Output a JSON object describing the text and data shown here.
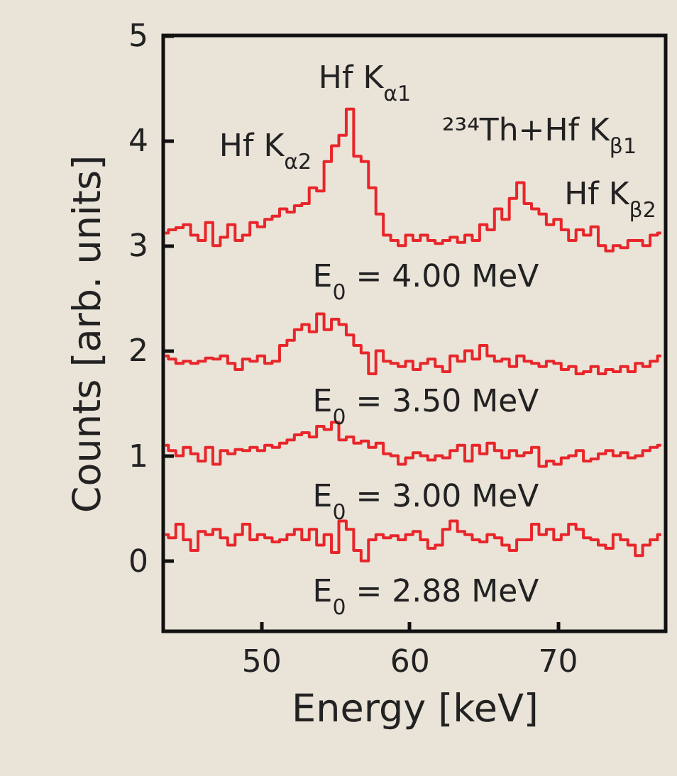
{
  "chart_data": {
    "type": "step",
    "xlabel": "Energy [keV]",
    "ylabel": "Counts [arb. units]",
    "x": [
      43.5,
      44,
      44.5,
      45,
      45.5,
      46,
      46.5,
      47,
      47.5,
      48,
      48.5,
      49,
      49.5,
      50,
      50.5,
      51,
      51.5,
      52,
      52.5,
      53,
      53.5,
      54,
      54.5,
      55,
      55.5,
      56,
      56.5,
      57,
      57.5,
      58,
      58.5,
      59,
      59.5,
      60,
      60.5,
      61,
      61.5,
      62,
      62.5,
      63,
      63.5,
      64,
      64.5,
      65,
      65.5,
      66,
      66.5,
      67,
      67.5,
      68,
      68.5,
      69,
      69.5,
      70,
      70.5,
      71,
      71.5,
      72,
      72.5,
      73,
      73.5,
      74,
      74.5,
      75,
      75.5,
      76,
      76.5,
      77
    ],
    "series": [
      {
        "color": "#e8262a",
        "values": [
          3.12,
          3.15,
          3.17,
          3.2,
          3.1,
          3.05,
          3.22,
          3.0,
          3.08,
          3.2,
          3.05,
          3.1,
          3.22,
          3.18,
          3.25,
          3.28,
          3.35,
          3.32,
          3.38,
          3.4,
          3.55,
          3.52,
          3.8,
          3.95,
          4.05,
          4.3,
          3.85,
          3.8,
          3.55,
          3.3,
          3.1,
          3.05,
          3.0,
          3.1,
          3.05,
          3.1,
          3.05,
          3.02,
          3.05,
          3.08,
          3.03,
          3.1,
          3.05,
          3.2,
          3.15,
          3.35,
          3.25,
          3.45,
          3.6,
          3.4,
          3.35,
          3.3,
          3.2,
          3.25,
          3.15,
          3.05,
          3.15,
          3.1,
          3.18,
          3.0,
          2.95,
          3.0,
          2.98,
          3.05,
          3.05,
          3.0,
          3.1,
          3.12
        ]
      },
      {
        "color": "#e8262a",
        "values": [
          1.95,
          1.92,
          1.88,
          1.9,
          1.88,
          1.9,
          1.93,
          1.92,
          1.95,
          1.88,
          1.82,
          1.92,
          1.9,
          1.95,
          1.88,
          1.9,
          2.05,
          2.1,
          2.2,
          2.25,
          2.18,
          2.35,
          2.2,
          2.3,
          2.25,
          2.15,
          2.05,
          1.98,
          1.78,
          2.0,
          1.9,
          1.88,
          1.85,
          1.9,
          1.82,
          1.88,
          1.92,
          1.85,
          1.8,
          1.95,
          1.9,
          2.0,
          1.92,
          2.05,
          1.95,
          1.9,
          1.92,
          1.85,
          1.95,
          1.9,
          1.88,
          1.85,
          1.9,
          1.88,
          1.82,
          1.85,
          1.78,
          1.8,
          1.85,
          1.78,
          1.82,
          1.8,
          1.85,
          1.8,
          1.88,
          1.85,
          1.9,
          1.95
        ]
      },
      {
        "color": "#e8262a",
        "values": [
          1.1,
          1.05,
          1.0,
          1.08,
          1.02,
          0.95,
          1.08,
          0.92,
          1.05,
          1.02,
          1.06,
          1.05,
          1.08,
          1.05,
          1.1,
          1.08,
          1.12,
          1.15,
          1.2,
          1.22,
          1.18,
          1.28,
          1.25,
          1.32,
          1.15,
          1.18,
          1.12,
          1.14,
          1.08,
          1.12,
          1.02,
          1.0,
          0.92,
          0.98,
          1.03,
          1.0,
          0.96,
          1.0,
          0.98,
          1.05,
          1.1,
          0.95,
          1.1,
          1.02,
          1.12,
          1.05,
          0.98,
          1.05,
          1.0,
          1.03,
          1.08,
          0.9,
          0.95,
          0.92,
          0.98,
          1.0,
          1.05,
          0.95,
          0.97,
          1.02,
          1.05,
          1.0,
          1.03,
          0.98,
          1.0,
          1.05,
          1.08,
          1.1
        ]
      },
      {
        "color": "#e8262a",
        "values": [
          0.25,
          0.22,
          0.35,
          0.2,
          0.1,
          0.28,
          0.25,
          0.3,
          0.22,
          0.15,
          0.25,
          0.35,
          0.2,
          0.25,
          0.22,
          0.18,
          0.2,
          0.25,
          0.3,
          0.2,
          0.3,
          0.15,
          0.25,
          0.08,
          0.38,
          0.3,
          0.1,
          0.0,
          0.2,
          0.25,
          0.22,
          0.24,
          0.2,
          0.25,
          0.28,
          0.2,
          0.12,
          0.15,
          0.3,
          0.38,
          0.28,
          0.25,
          0.2,
          0.18,
          0.25,
          0.22,
          0.15,
          0.1,
          0.2,
          0.2,
          0.35,
          0.25,
          0.3,
          0.2,
          0.25,
          0.35,
          0.3,
          0.22,
          0.2,
          0.15,
          0.12,
          0.25,
          0.2,
          0.15,
          0.05,
          0.15,
          0.2,
          0.25
        ]
      }
    ],
    "xlim": [
      43.4,
      77.3
    ],
    "xticks": [
      50,
      60,
      70
    ],
    "ylim": [
      -0.67,
      5
    ],
    "yticks": [
      0,
      1,
      2,
      3,
      4,
      5
    ],
    "grid": false,
    "legend": false,
    "line_style": "solid",
    "marker": "none",
    "annotations": [
      "Hf K$_{α1}$",
      "Hf K$_{α2}$",
      "²³⁴Th+Hf K$_{β1}$",
      "Hf K$_{β2}$",
      "E$_{0}$ = 4.00 MeV",
      "E$_{0}$ = 3.50 MeV",
      "E$_{0}$ = 3.00 MeV",
      "E$_{0}$ = 2.88 MeV"
    ]
  }
}
